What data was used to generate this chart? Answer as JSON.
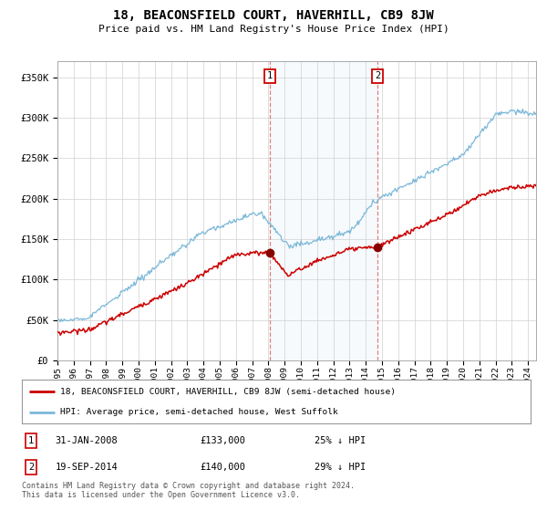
{
  "title": "18, BEACONSFIELD COURT, HAVERHILL, CB9 8JW",
  "subtitle": "Price paid vs. HM Land Registry's House Price Index (HPI)",
  "ylabel_ticks": [
    "£0",
    "£50K",
    "£100K",
    "£150K",
    "£200K",
    "£250K",
    "£300K",
    "£350K"
  ],
  "ytick_values": [
    0,
    50000,
    100000,
    150000,
    200000,
    250000,
    300000,
    350000
  ],
  "ylim": [
    0,
    370000
  ],
  "xlim_start": 1995.0,
  "xlim_end": 2024.5,
  "sale1_date": 2008.08,
  "sale1_price": 133000,
  "sale1_label": "1",
  "sale2_date": 2014.72,
  "sale2_price": 140000,
  "sale2_label": "2",
  "hpi_color": "#7ab8d9",
  "price_color": "#cc0000",
  "shade_color": "#daeaf5",
  "legend1_text": "18, BEACONSFIELD COURT, HAVERHILL, CB9 8JW (semi-detached house)",
  "legend2_text": "HPI: Average price, semi-detached house, West Suffolk",
  "footer": "Contains HM Land Registry data © Crown copyright and database right 2024.\nThis data is licensed under the Open Government Licence v3.0.",
  "background_color": "#ffffff",
  "grid_color": "#d0d0d0"
}
